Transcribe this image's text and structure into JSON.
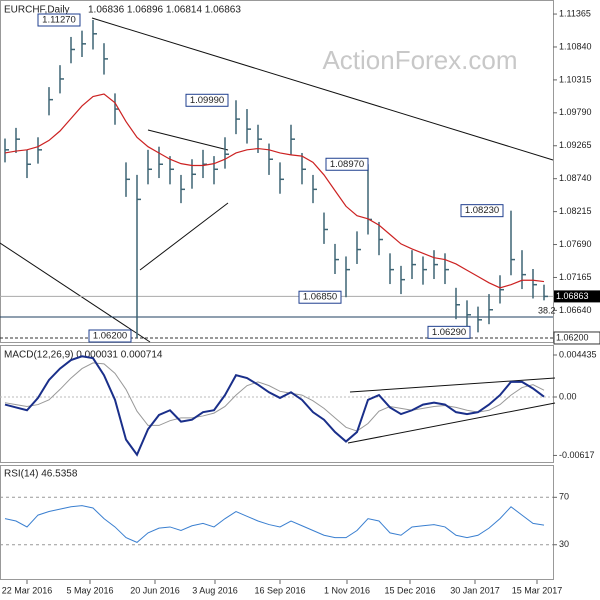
{
  "chart_data": {
    "type": "hlc",
    "title": "EURCHF,Daily",
    "header": "1.06836 1.06896 1.06814 1.06863",
    "watermark": "ActionForex.com",
    "x_labels": [
      "22 Mar 2016",
      "5 May 2016",
      "20 Jun 2016",
      "3 Aug 2016",
      "16 Sep 2016",
      "1 Nov 2016",
      "15 Dec 2016",
      "30 Jan 2017",
      "15 Mar 2017"
    ],
    "color": "#3d6474",
    "high": [
      1.0938,
      1.0955,
      1.092,
      1.094,
      1.102,
      1.1055,
      1.11,
      1.111,
      1.1127,
      1.109,
      1.101,
      1.09,
      1.088,
      1.092,
      1.0925,
      1.091,
      1.088,
      1.0905,
      1.092,
      1.091,
      1.094,
      1.0999,
      1.0985,
      1.096,
      1.093,
      1.09,
      1.096,
      1.0915,
      1.088,
      1.082,
      1.077,
      1.075,
      1.079,
      1.0897,
      1.0805,
      1.0755,
      1.0735,
      1.076,
      1.075,
      1.076,
      1.0755,
      1.07,
      1.068,
      1.067,
      1.069,
      1.072,
      1.0823,
      1.076,
      1.073,
      1.0705
    ],
    "low": [
      1.09,
      1.0915,
      1.0875,
      1.0898,
      1.0975,
      1.101,
      1.1058,
      1.1068,
      1.108,
      1.104,
      1.096,
      1.0845,
      1.062,
      1.0865,
      1.0875,
      1.0865,
      1.0835,
      1.0858,
      1.0875,
      1.0865,
      1.089,
      1.0945,
      1.093,
      1.0915,
      1.088,
      1.085,
      1.0912,
      1.0865,
      1.0835,
      1.077,
      1.0722,
      1.0685,
      1.0738,
      1.0785,
      1.0752,
      1.0706,
      1.069,
      1.0714,
      1.0705,
      1.0714,
      1.0706,
      1.065,
      1.0635,
      1.0629,
      1.0642,
      1.0675,
      1.072,
      1.0698,
      1.0683,
      1.068
    ],
    "close": [
      1.092,
      1.0937,
      1.0897,
      1.092,
      1.1,
      1.1033,
      1.108,
      1.1089,
      1.1105,
      1.1065,
      1.0985,
      1.0873,
      1.0841,
      1.0889,
      1.0897,
      1.0889,
      1.0857,
      1.0881,
      1.0897,
      1.0889,
      1.0913,
      1.0969,
      1.0953,
      1.0937,
      1.0905,
      1.0873,
      1.0937,
      1.0889,
      1.0857,
      1.0793,
      1.0745,
      1.0729,
      1.0761,
      1.0809,
      1.0777,
      1.0729,
      1.0713,
      1.0737,
      1.0729,
      1.0737,
      1.0729,
      1.0673,
      1.0657,
      1.0649,
      1.0665,
      1.0697,
      1.0745,
      1.0721,
      1.0705,
      1.06863
    ],
    "ma": {
      "color": "#cc2222",
      "values": [
        1.0915,
        1.0918,
        1.092,
        1.0925,
        1.0935,
        1.095,
        1.097,
        1.099,
        1.1005,
        1.1009,
        1.0995,
        1.0965,
        1.094,
        1.0925,
        1.0915,
        1.0905,
        1.0898,
        1.0895,
        1.0895,
        1.0898,
        1.0905,
        1.0915,
        1.092,
        1.0922,
        1.092,
        1.0915,
        1.0912,
        1.091,
        1.09,
        1.088,
        1.0855,
        1.083,
        1.0815,
        1.081,
        1.08,
        1.0785,
        1.077,
        1.0762,
        1.0755,
        1.0748,
        1.0745,
        1.0738,
        1.0728,
        1.0718,
        1.0708,
        1.07,
        1.0705,
        1.0712,
        1.0712,
        1.071
      ]
    },
    "ylim": [
      1.06136,
      1.11573
    ],
    "yticks": [
      {
        "value": 1.11365,
        "label": "1.11365"
      },
      {
        "value": 1.1084,
        "label": "1.10840"
      },
      {
        "value": 1.10315,
        "label": "1.10315"
      },
      {
        "value": 1.0979,
        "label": "1.09790"
      },
      {
        "value": 1.09265,
        "label": "1.09265"
      },
      {
        "value": 1.0874,
        "label": "1.08740"
      },
      {
        "value": 1.08215,
        "label": "1.08215"
      },
      {
        "value": 1.0769,
        "label": "1.07690"
      },
      {
        "value": 1.07165,
        "label": "1.07165"
      },
      {
        "value": 1.0664,
        "label": "1.06640"
      }
    ],
    "last_price": {
      "value": 1.06863,
      "label": "1.06863"
    },
    "low_level": {
      "value": 1.062,
      "label": "1.06200"
    },
    "fib_level": {
      "value": 1.06535,
      "label": "38.2"
    },
    "annotations": [
      {
        "value": 1.1127,
        "label": "1.11270"
      },
      {
        "value": 1.0999,
        "label": "1.09990"
      },
      {
        "value": 1.0897,
        "label": "1.08970"
      },
      {
        "value": 1.0823,
        "label": "1.08230"
      },
      {
        "value": 1.0685,
        "label": "1.06850"
      },
      {
        "value": 1.0629,
        "label": "1.06290"
      },
      {
        "value": 1.062,
        "label": "1.06200"
      }
    ],
    "macd": {
      "title": "MACD(12,26,9) 0.000031 0.000714",
      "ylim": [
        -0.006863,
        0.005385
      ],
      "yticks": [
        {
          "value": 0.004435,
          "label": "0.004435"
        },
        {
          "value": 0,
          "label": "0.00"
        },
        {
          "value": -0.00617,
          "label": "-0.00617"
        }
      ],
      "series": [
        {
          "color": "#1a2f8a",
          "values": [
            -0.0008,
            -0.0011,
            -0.0014,
            -0.0001,
            0.0018,
            0.003,
            0.0039,
            0.0043,
            0.0041,
            0.0023,
            -0.0003,
            -0.0045,
            -0.0061,
            -0.0034,
            -0.0019,
            -0.0014,
            -0.0026,
            -0.0024,
            -0.0016,
            -0.0014,
            0.0002,
            0.0023,
            0.002,
            0.0013,
            0.0005,
            -0.0001,
            0.0005,
            -0.0003,
            -0.0016,
            -0.0024,
            -0.0037,
            -0.0047,
            -0.0037,
            -0.0003,
            0.0002,
            -0.0011,
            -0.0018,
            -0.0014,
            -0.0008,
            -0.0006,
            -0.0008,
            -0.0016,
            -0.0018,
            -0.0016,
            -0.0008,
            0.0002,
            0.0016,
            0.0016,
            0.0009,
            3.1e-05
          ]
        },
        {
          "color": "#999999",
          "values": [
            -0.0006,
            -0.0008,
            -0.001,
            -0.0008,
            -0.0003,
            0.0008,
            0.002,
            0.003,
            0.0036,
            0.0035,
            0.0025,
            0.0008,
            -0.0015,
            -0.003,
            -0.003,
            -0.0025,
            -0.0022,
            -0.0022,
            -0.002,
            -0.0017,
            -0.001,
            0.0002,
            0.0012,
            0.0016,
            0.0012,
            0.0006,
            0.0004,
            0.0002,
            -0.0004,
            -0.0012,
            -0.0022,
            -0.0032,
            -0.0036,
            -0.0028,
            -0.0015,
            -0.001,
            -0.0012,
            -0.0014,
            -0.0012,
            -0.001,
            -0.0009,
            -0.0011,
            -0.0014,
            -0.0016,
            -0.0014,
            -0.0008,
            0.0002,
            0.001,
            0.0013,
            0.000714
          ]
        }
      ]
    },
    "rsi": {
      "title": "RSI(14) 46.5358",
      "color": "#3a7fd0",
      "ylim": [
        1.1,
        96.4
      ],
      "yticks": [
        70,
        30
      ],
      "values": [
        52,
        50,
        45,
        55,
        58,
        60,
        62,
        63,
        61,
        52,
        45,
        36,
        32,
        40,
        44,
        45,
        42,
        46,
        48,
        45,
        52,
        58,
        54,
        50,
        47,
        45,
        50,
        46,
        42,
        38,
        36,
        36,
        42,
        52,
        50,
        40,
        38,
        45,
        46,
        47,
        45,
        38,
        36,
        38,
        44,
        52,
        62,
        55,
        48,
        46.5358
      ]
    }
  }
}
